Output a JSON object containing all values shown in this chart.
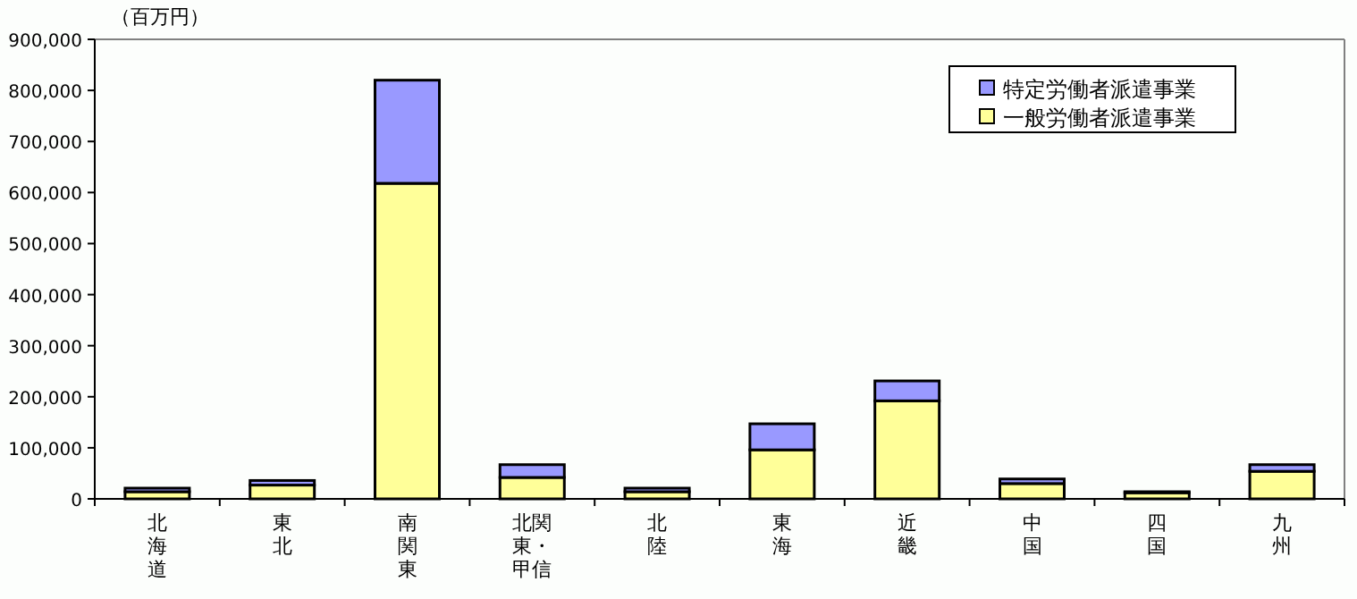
{
  "chart_data": {
    "type": "bar",
    "stacked": true,
    "ylabel": "（百万円）",
    "categories": [
      "北海道",
      "東北",
      "南関東",
      "北関東・甲信",
      "北陸",
      "東海",
      "近畿",
      "中国",
      "四国",
      "九州"
    ],
    "series": [
      {
        "name": "一般労働者派遣事業",
        "color": "#ffff99",
        "values": [
          14000,
          27000,
          618000,
          42000,
          14000,
          96000,
          192000,
          30000,
          12000,
          54000
        ]
      },
      {
        "name": "特定労働者派遣事業",
        "color": "#9999ff",
        "values": [
          7000,
          9000,
          202000,
          25000,
          7000,
          51000,
          39000,
          9000,
          2000,
          13000
        ]
      }
    ],
    "ylim": [
      0,
      900000
    ],
    "yticks": [
      0,
      {
        "value": 100000,
        "label": "100,000"
      },
      {
        "value": 200000,
        "label": "200,000"
      },
      {
        "value": 300000,
        "label": "300,000"
      },
      {
        "value": 400000,
        "label": "400,000"
      },
      {
        "value": 500000,
        "label": "500,000"
      },
      {
        "value": 600000,
        "label": "600,000"
      },
      {
        "value": 700000,
        "label": "700,000"
      },
      {
        "value": 800000,
        "label": "800,000"
      },
      {
        "value": 900000,
        "label": "900,000"
      }
    ],
    "legend": "top right"
  }
}
